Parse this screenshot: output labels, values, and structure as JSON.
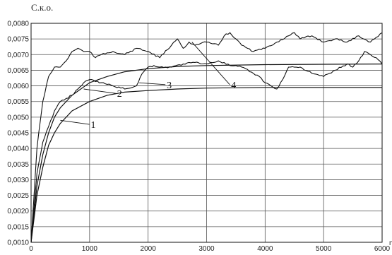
{
  "chart_data": {
    "type": "line",
    "title": "С.к.о.",
    "xlabel": "n",
    "ylabel": "",
    "xlim": [
      0,
      6000
    ],
    "ylim": [
      0.001,
      0.008
    ],
    "grid": true,
    "legend": "none",
    "x_ticks": [
      "0",
      "1000",
      "2000",
      "3000",
      "4000",
      "5000",
      "6000"
    ],
    "y_ticks": [
      "0,0010",
      "0,0015",
      "0,0020",
      "0,0025",
      "0,0030",
      "0,0035",
      "0,0040",
      "0,0045",
      "0,0050",
      "0,0055",
      "0,0060",
      "0,0065",
      "0,0070",
      "0,0075",
      "0,0080"
    ],
    "series": [
      {
        "name": "1",
        "x": [
          0,
          100,
          200,
          300,
          400,
          500,
          700,
          1000,
          1300,
          1600,
          2000,
          2500,
          3000,
          4000,
          5000,
          6000
        ],
        "y": [
          0.001,
          0.0025,
          0.0034,
          0.0041,
          0.0045,
          0.0048,
          0.0052,
          0.0055,
          0.0057,
          0.0058,
          0.00585,
          0.0059,
          0.00593,
          0.00595,
          0.00595,
          0.00595
        ]
      },
      {
        "name": "2",
        "x": [
          0,
          100,
          200,
          300,
          400,
          500,
          700,
          1000,
          1300,
          1600,
          2000,
          2500,
          3000,
          4000,
          5000,
          6000
        ],
        "y": [
          0.001,
          0.0028,
          0.0038,
          0.0045,
          0.005,
          0.0053,
          0.0057,
          0.0061,
          0.0063,
          0.00645,
          0.00655,
          0.00662,
          0.00665,
          0.00668,
          0.00669,
          0.0067
        ]
      },
      {
        "name": "3",
        "x": [
          0,
          100,
          200,
          300,
          400,
          500,
          600,
          700,
          800,
          900,
          1000,
          1200,
          1400,
          1600,
          1800,
          1900,
          2000,
          2100,
          2200,
          2400,
          2600,
          2800,
          3000,
          3200,
          3400,
          3600,
          3800,
          3900,
          4000,
          4100,
          4200,
          4300,
          4400,
          4600,
          4800,
          5000,
          5200,
          5400,
          5500,
          5600,
          5700,
          5800,
          5900,
          6000
        ],
        "y": [
          0.001,
          0.0032,
          0.0042,
          0.0047,
          0.0052,
          0.0055,
          0.0056,
          0.0057,
          0.0059,
          0.0061,
          0.0062,
          0.0061,
          0.006,
          0.0059,
          0.006,
          0.0064,
          0.0066,
          0.00665,
          0.0066,
          0.0066,
          0.0067,
          0.00675,
          0.0067,
          0.0068,
          0.00665,
          0.0066,
          0.0064,
          0.0063,
          0.0061,
          0.006,
          0.0059,
          0.0062,
          0.0066,
          0.0066,
          0.0064,
          0.0063,
          0.0065,
          0.0067,
          0.0066,
          0.0068,
          0.0071,
          0.007,
          0.0069,
          0.0067
        ]
      },
      {
        "name": "4",
        "x": [
          0,
          100,
          200,
          300,
          400,
          500,
          600,
          700,
          800,
          900,
          1000,
          1100,
          1200,
          1400,
          1600,
          1800,
          2000,
          2200,
          2400,
          2500,
          2600,
          2700,
          2800,
          3000,
          3200,
          3300,
          3400,
          3500,
          3600,
          3800,
          4000,
          4200,
          4400,
          4500,
          4600,
          4800,
          5000,
          5200,
          5400,
          5600,
          5800,
          6000
        ],
        "y": [
          0.001,
          0.004,
          0.0055,
          0.0063,
          0.0066,
          0.0066,
          0.0068,
          0.0071,
          0.0072,
          0.0071,
          0.0071,
          0.0069,
          0.007,
          0.0071,
          0.007,
          0.0072,
          0.0071,
          0.0069,
          0.0073,
          0.0075,
          0.0072,
          0.0074,
          0.0073,
          0.0074,
          0.0073,
          0.0076,
          0.0077,
          0.0075,
          0.0073,
          0.0071,
          0.0072,
          0.0074,
          0.0076,
          0.0077,
          0.0075,
          0.0076,
          0.0074,
          0.0075,
          0.0074,
          0.0076,
          0.0074,
          0.0077
        ]
      }
    ],
    "annotations": [
      {
        "label": "1",
        "x_at": 500,
        "y_at": 0.0049,
        "x_text": 1020,
        "y_text": 0.00468
      },
      {
        "label": "2",
        "x_at": 900,
        "y_at": 0.0059,
        "x_text": 1470,
        "y_text": 0.00567
      },
      {
        "label": "3",
        "x_at": 1850,
        "y_at": 0.0061,
        "x_text": 2320,
        "y_text": 0.00595
      },
      {
        "label": "4",
        "x_at": 2750,
        "y_at": 0.0074,
        "x_text": 3420,
        "y_text": 0.00595
      }
    ]
  }
}
